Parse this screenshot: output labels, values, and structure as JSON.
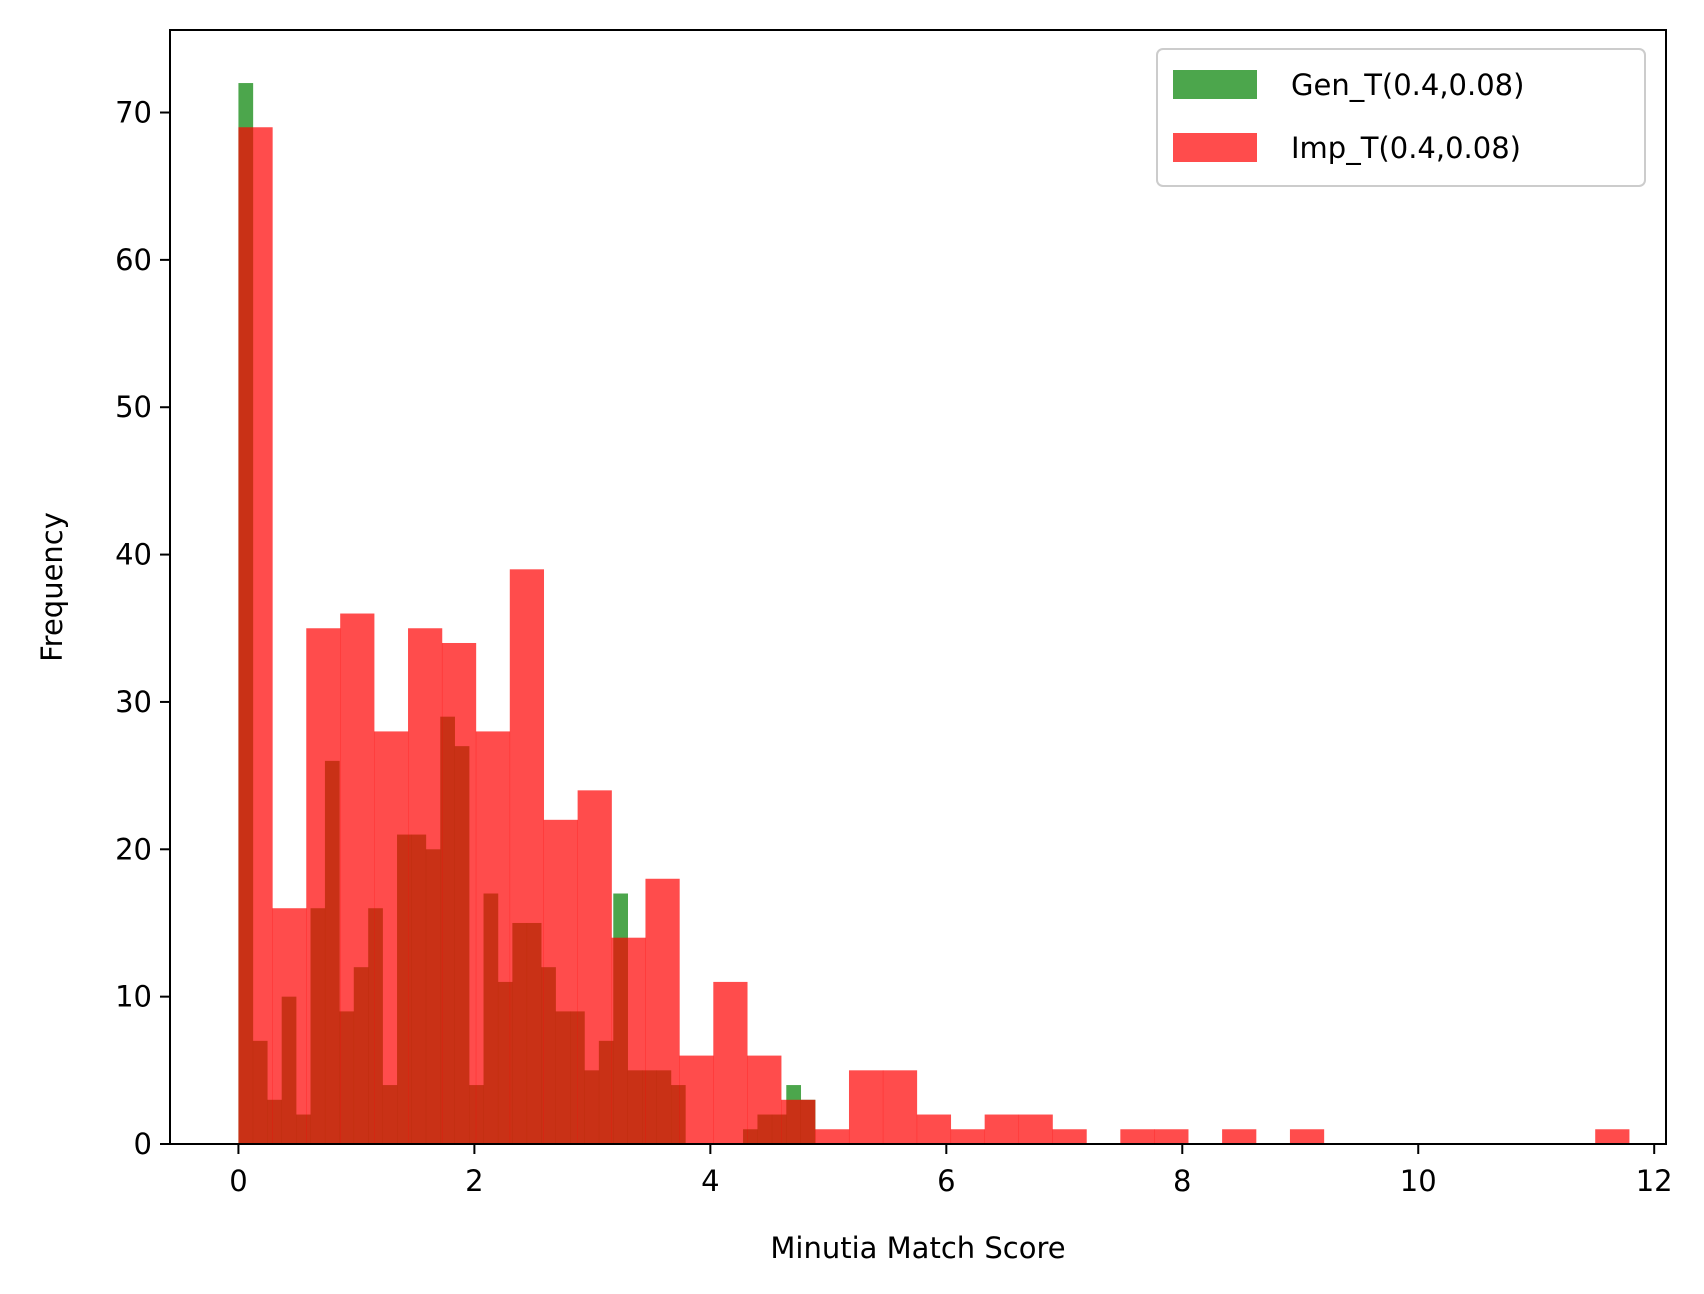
{
  "chart_data": {
    "type": "histogram",
    "title": "",
    "xlabel": "Minutia Match Score",
    "ylabel": "Frequency",
    "xlim": [
      -0.58,
      12.1
    ],
    "ylim": [
      0,
      75.6
    ],
    "xticks": [
      0,
      2,
      4,
      6,
      8,
      10,
      12
    ],
    "yticks": [
      0,
      10,
      20,
      30,
      40,
      50,
      60,
      70
    ],
    "grid": false,
    "legend_position": "top-right",
    "series": [
      {
        "name": "Gen_T(0.4,0.08)",
        "color": "#008000",
        "opacity": 0.7,
        "bin_start": 0,
        "bin_width": 0.1222,
        "values": [
          72,
          7,
          3,
          10,
          2,
          16,
          26,
          9,
          12,
          16,
          4,
          21,
          21,
          20,
          29,
          27,
          4,
          17,
          11,
          15,
          15,
          12,
          9,
          9,
          5,
          7,
          17,
          5,
          5,
          5,
          4,
          0,
          0,
          0,
          0,
          1,
          2,
          2,
          4,
          3
        ]
      },
      {
        "name": "Imp_T(0.4,0.08)",
        "color": "#ff0000",
        "opacity": 0.7,
        "bin_start": 0,
        "bin_width": 0.2875,
        "values": [
          69,
          16,
          35,
          36,
          28,
          35,
          34,
          28,
          39,
          22,
          24,
          14,
          18,
          6,
          11,
          6,
          3,
          1,
          5,
          5,
          2,
          1,
          2,
          2,
          1,
          0,
          1,
          1,
          0,
          1,
          0,
          1,
          0,
          0,
          0,
          0,
          0,
          0,
          0,
          0,
          1
        ]
      }
    ]
  }
}
